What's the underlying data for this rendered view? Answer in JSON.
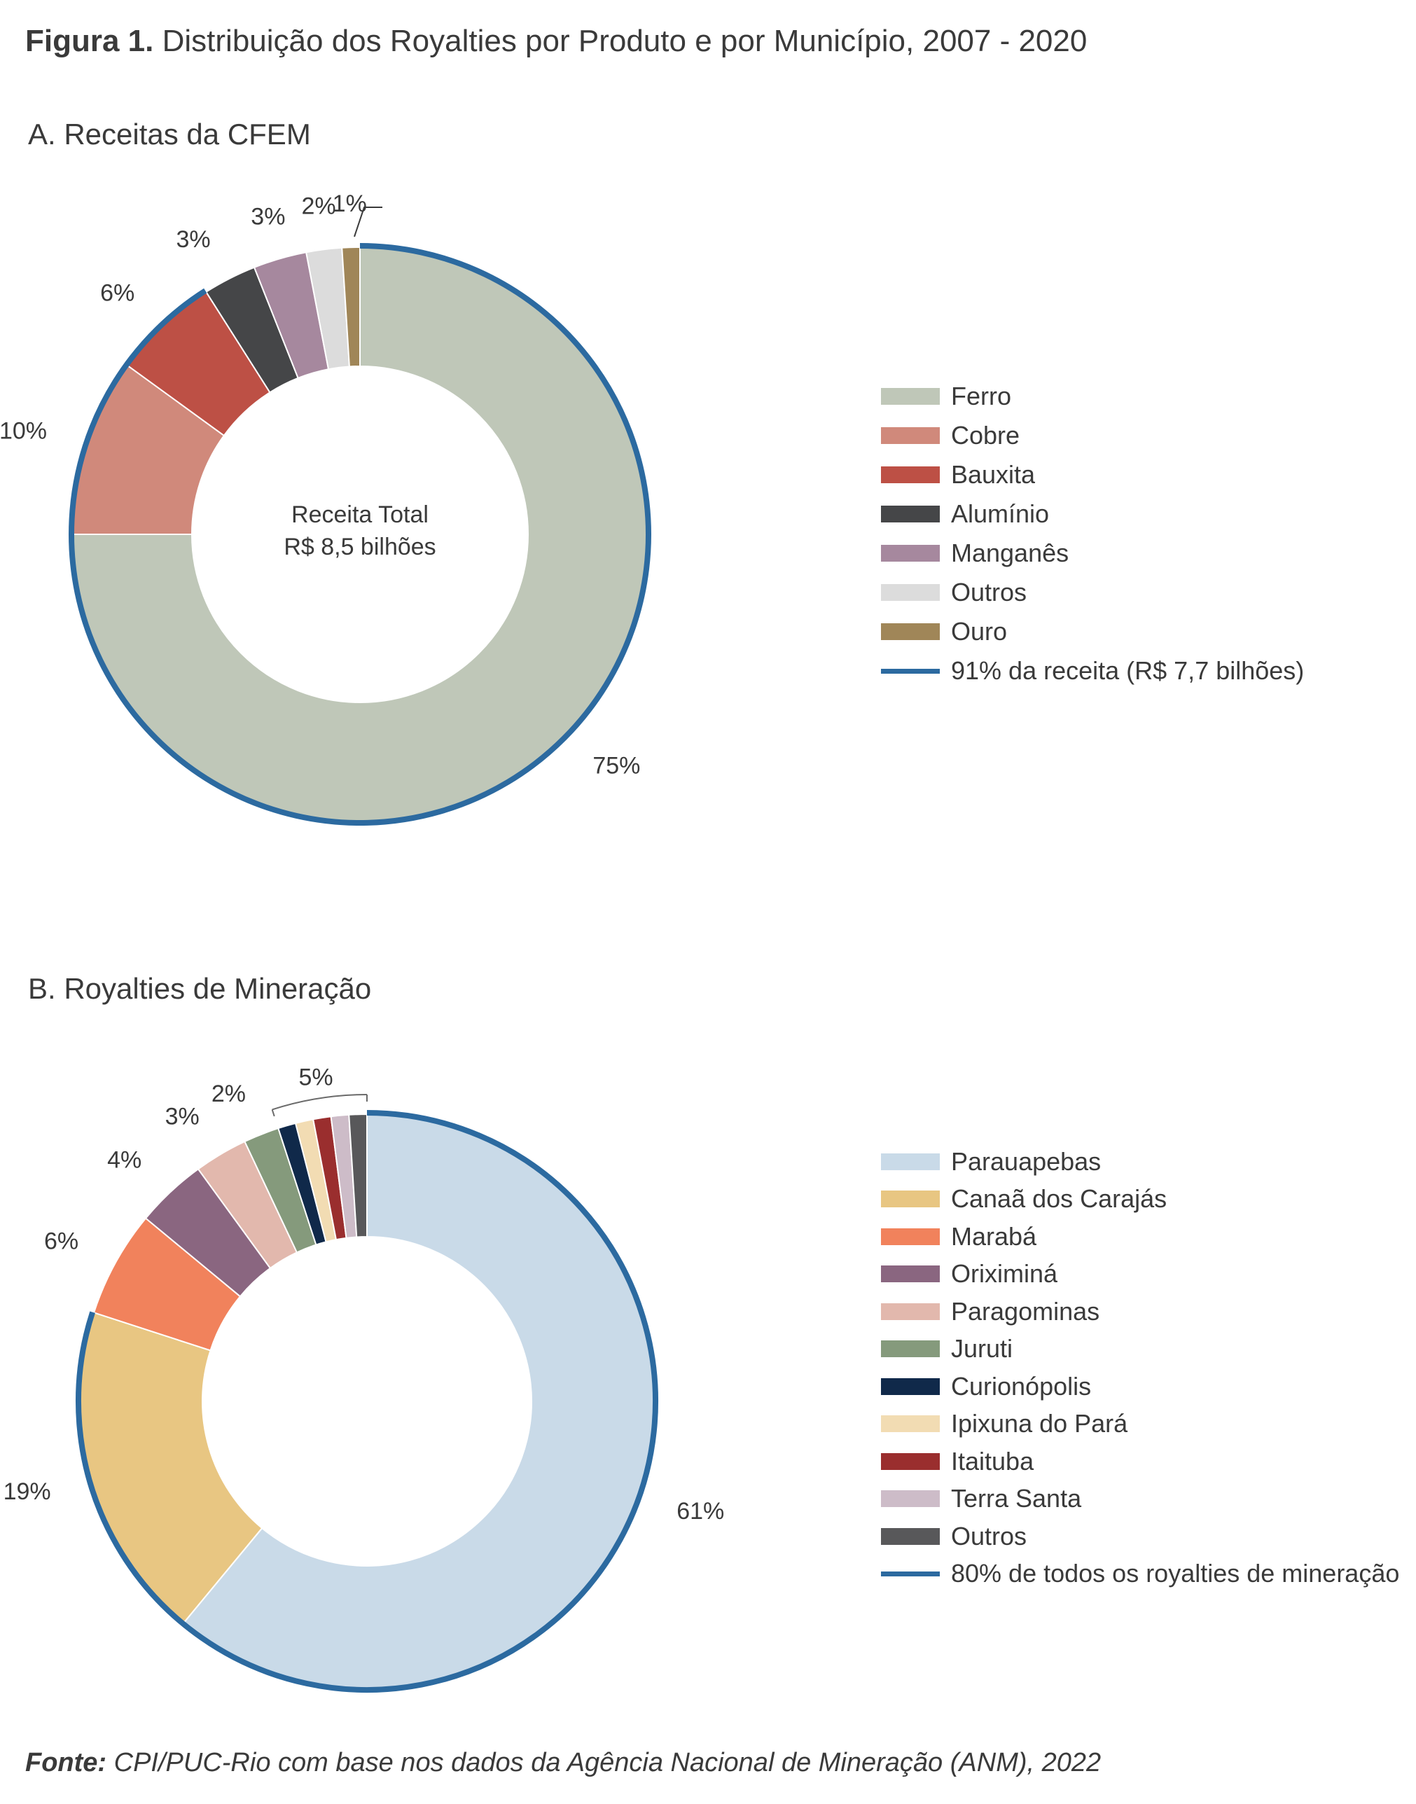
{
  "figure": {
    "label": "Figura 1.",
    "title": "Distribuição dos Royalties por Produto e por Município, 2007 - 2020"
  },
  "chart_data": [
    {
      "type": "pie",
      "title": "A. Receitas da CFEM",
      "center_text": [
        "Receita Total",
        "R$ 8,5 bilhões"
      ],
      "slices": [
        {
          "name": "Ferro",
          "value": 75,
          "label": "75%",
          "color": "#bfc7b8"
        },
        {
          "name": "Cobre",
          "value": 10,
          "label": "10%",
          "color": "#d0897b"
        },
        {
          "name": "Bauxita",
          "value": 6,
          "label": "6%",
          "color": "#bd5045"
        },
        {
          "name": "Alumínio",
          "value": 3,
          "label": "3%",
          "color": "#454648"
        },
        {
          "name": "Manganês",
          "value": 3,
          "label": "3%",
          "color": "#a6889e"
        },
        {
          "name": "Outros",
          "value": 2,
          "label": "2%",
          "color": "#dcdcdc"
        },
        {
          "name": "Ouro",
          "value": 1,
          "label": "1%",
          "color": "#a08658"
        }
      ],
      "highlight": {
        "label": "91% da receita (R$ 7,7 bilhões)",
        "color": "#2c6aa0",
        "from_slice": "Ferro",
        "to_slice": "Bauxita"
      },
      "legend_position": "right"
    },
    {
      "type": "pie",
      "title": "B. Royalties de Mineração",
      "slices": [
        {
          "name": "Parauapebas",
          "value": 61,
          "label": "61%",
          "color": "#c9dae8"
        },
        {
          "name": "Canaã dos Carajás",
          "value": 19,
          "label": "19%",
          "color": "#e8c682"
        },
        {
          "name": "Marabá",
          "value": 6,
          "label": "6%",
          "color": "#f1825c"
        },
        {
          "name": "Oriximiná",
          "value": 4,
          "label": "4%",
          "color": "#8a6680"
        },
        {
          "name": "Paragominas",
          "value": 3,
          "label": "3%",
          "color": "#e2b8ad"
        },
        {
          "name": "Juruti",
          "value": 2,
          "label": "2%",
          "color": "#859a7c"
        },
        {
          "name": "Curionópolis",
          "value": 1,
          "color": "#10294a"
        },
        {
          "name": "Ipixuna do Pará",
          "value": 1,
          "color": "#f2dcb3"
        },
        {
          "name": "Itaituba",
          "value": 1,
          "color": "#9a2e2e"
        },
        {
          "name": "Terra Santa",
          "value": 1,
          "color": "#cdbcc8"
        },
        {
          "name": "Outros",
          "value": 1,
          "color": "#58585a"
        }
      ],
      "group_label": "5%",
      "highlight": {
        "label": "80% de todos os royalties de mineração",
        "color": "#2c6aa0",
        "from_slice": "Parauapebas",
        "to_slice": "Canaã dos Carajás"
      },
      "legend_position": "right"
    }
  ],
  "footer": {
    "label": "Fonte:",
    "text": "CPI/PUC-Rio com base nos dados da Agência Nacional de Mineração (ANM), 2022"
  }
}
